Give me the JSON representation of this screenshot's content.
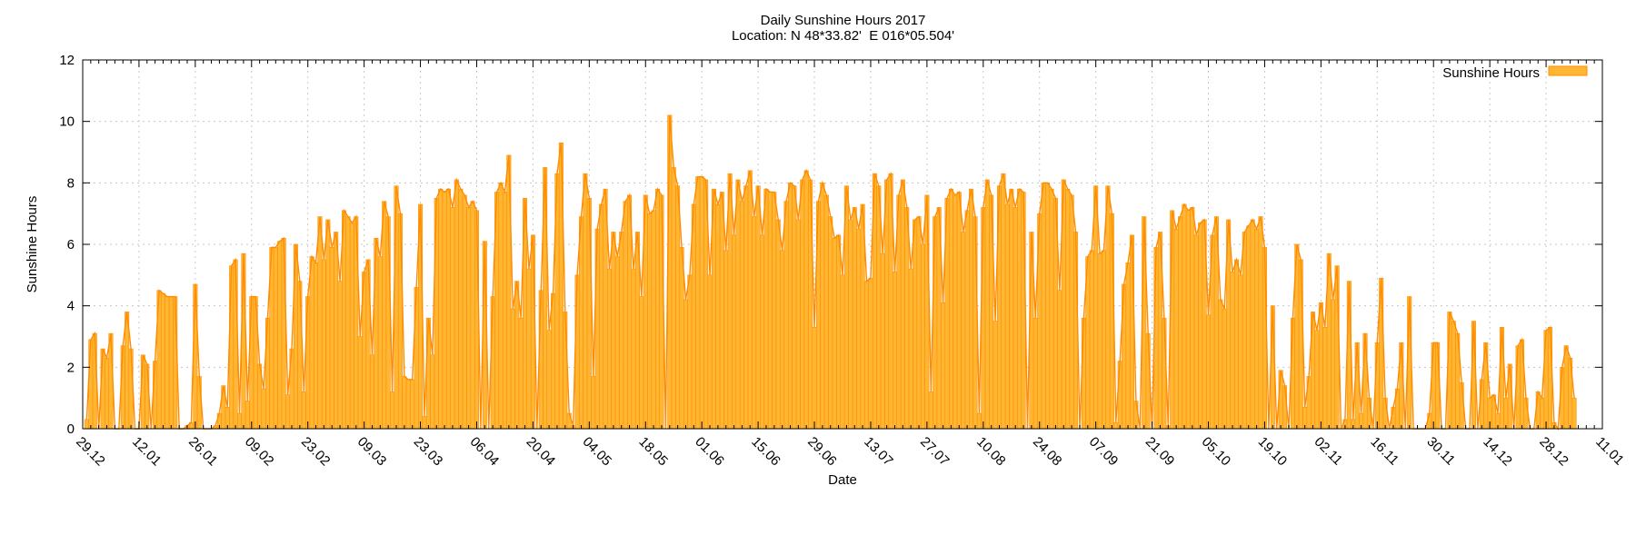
{
  "chart_data": {
    "type": "bar",
    "title": "Daily Sunshine Hours 2017",
    "subtitle": "Location: N 48*33.82'  E 016*05.504'",
    "xlabel": "Date",
    "ylabel": "Sunshine Hours",
    "ylim": [
      0,
      12
    ],
    "yticks": [
      0,
      2,
      4,
      6,
      8,
      10,
      12
    ],
    "x_start_label": "29.12",
    "xlim_days": [
      0,
      378
    ],
    "xticks": [
      "29.12",
      "12.01",
      "26.01",
      "09.02",
      "23.02",
      "09.03",
      "23.03",
      "06.04",
      "20.04",
      "04.05",
      "18.05",
      "01.06",
      "15.06",
      "29.06",
      "13.07",
      "27.07",
      "10.08",
      "24.08",
      "07.09",
      "21.09",
      "05.10",
      "19.10",
      "02.11",
      "16.11",
      "30.11",
      "14.12",
      "28.12",
      "11.01"
    ],
    "grid": true,
    "legend": {
      "position": "top-right",
      "entries": [
        "Sunshine Hours"
      ]
    },
    "series": [
      {
        "name": "Sunshine Hours",
        "color": "#ffb733",
        "edge": "#ff8c00",
        "values": [
          0.3,
          2.9,
          3.1,
          0.0,
          2.6,
          2.3,
          3.1,
          0.0,
          0.0,
          2.7,
          3.8,
          2.6,
          0.0,
          0.0,
          2.4,
          2.1,
          0.0,
          2.2,
          4.5,
          4.4,
          4.3,
          4.3,
          4.3,
          0.0,
          0.0,
          0.1,
          0.2,
          4.7,
          1.7,
          0.0,
          0.0,
          0.0,
          0.1,
          0.5,
          1.4,
          0.7,
          5.3,
          5.5,
          0.5,
          5.7,
          0.9,
          4.3,
          4.3,
          2.1,
          1.3,
          3.6,
          5.9,
          5.9,
          6.1,
          6.2,
          1.1,
          2.6,
          6.0,
          4.8,
          1.2,
          4.3,
          5.6,
          5.4,
          6.9,
          5.5,
          6.8,
          5.9,
          6.4,
          4.8,
          7.1,
          6.9,
          6.7,
          6.9,
          3.0,
          5.1,
          5.5,
          2.4,
          6.2,
          5.6,
          7.4,
          6.9,
          1.2,
          7.9,
          7.0,
          1.7,
          1.6,
          1.6,
          4.6,
          7.3,
          0.4,
          3.6,
          2.4,
          7.5,
          7.8,
          7.7,
          7.8,
          7.2,
          8.1,
          7.8,
          7.6,
          7.2,
          7.4,
          7.1,
          0.0,
          6.1,
          0.0,
          4.3,
          7.7,
          8.0,
          7.7,
          8.9,
          3.9,
          4.8,
          3.6,
          7.5,
          5.2,
          6.3,
          0.0,
          4.5,
          8.5,
          3.2,
          4.4,
          8.3,
          9.3,
          3.8,
          0.5,
          0.1,
          5.0,
          6.9,
          8.3,
          7.5,
          1.7,
          6.5,
          7.3,
          7.8,
          5.2,
          6.4,
          5.6,
          6.4,
          7.4,
          7.6,
          5.2,
          6.4,
          4.3,
          7.6,
          7.0,
          7.1,
          7.8,
          7.6,
          0.0,
          10.2,
          8.5,
          7.9,
          5.9,
          4.2,
          5.0,
          7.3,
          8.2,
          8.2,
          8.1,
          5.0,
          7.8,
          7.3,
          7.7,
          5.8,
          8.3,
          6.3,
          8.1,
          7.4,
          7.9,
          8.4,
          6.9,
          7.9,
          6.3,
          7.8,
          7.7,
          7.7,
          6.8,
          5.8,
          7.4,
          8.0,
          7.9,
          6.8,
          8.1,
          8.4,
          8.1,
          3.3,
          7.4,
          8.0,
          7.6,
          6.9,
          6.2,
          6.3,
          5.0,
          7.9,
          6.8,
          7.2,
          6.5,
          7.3,
          4.8,
          4.9,
          8.3,
          7.9,
          5.7,
          8.1,
          8.3,
          5.1,
          7.6,
          8.1,
          7.2,
          5.2,
          6.8,
          6.9,
          6.0,
          7.6,
          1.2,
          6.9,
          7.2,
          4.1,
          7.5,
          7.8,
          7.6,
          7.7,
          6.4,
          7.1,
          7.8,
          6.9,
          0.5,
          7.2,
          8.1,
          7.6,
          3.5,
          7.9,
          8.3,
          7.3,
          7.8,
          7.2,
          7.8,
          7.7,
          0.0,
          6.4,
          3.6,
          7.0,
          8.0,
          8.0,
          7.8,
          7.5,
          4.5,
          8.1,
          7.8,
          7.6,
          6.4,
          0.0,
          3.6,
          5.6,
          5.8,
          7.9,
          5.7,
          5.8,
          7.9,
          7.0,
          0.2,
          2.2,
          4.7,
          5.4,
          6.3,
          0.9,
          0.0,
          6.9,
          3.1,
          0.0,
          5.9,
          6.4,
          3.6,
          0.1,
          7.1,
          6.5,
          6.9,
          7.3,
          7.1,
          7.2,
          6.3,
          6.7,
          6.8,
          3.7,
          6.3,
          6.9,
          4.2,
          3.9,
          6.8,
          5.1,
          5.5,
          5.0,
          6.4,
          6.6,
          6.8,
          6.5,
          6.9,
          5.9,
          0.0,
          4.0,
          0.0,
          1.9,
          1.4,
          0.0,
          3.6,
          6.0,
          5.5,
          0.7,
          1.7,
          3.8,
          3.2,
          4.1,
          3.3,
          5.7,
          4.2,
          5.3,
          0.0,
          0.3,
          4.8,
          0.3,
          2.8,
          0.5,
          3.1,
          1.0,
          0.0,
          2.8,
          4.9,
          1.0,
          0.0,
          0.7,
          1.3,
          2.8,
          0.0,
          4.3,
          0.0,
          0.0,
          0.0,
          0.0,
          0.5,
          2.8,
          2.8,
          0.0,
          0.0,
          3.8,
          3.5,
          3.1,
          1.5,
          0.0,
          0.0,
          3.5,
          0.0,
          1.6,
          2.8,
          1.0,
          1.1,
          0.5,
          3.3,
          1.0,
          2.1,
          0.0,
          2.7,
          2.9,
          1.0,
          0.0,
          0.0,
          1.2,
          1.0,
          3.2,
          3.3,
          0.2,
          0.0,
          2.0,
          2.7,
          2.3,
          1.0
        ]
      }
    ]
  }
}
